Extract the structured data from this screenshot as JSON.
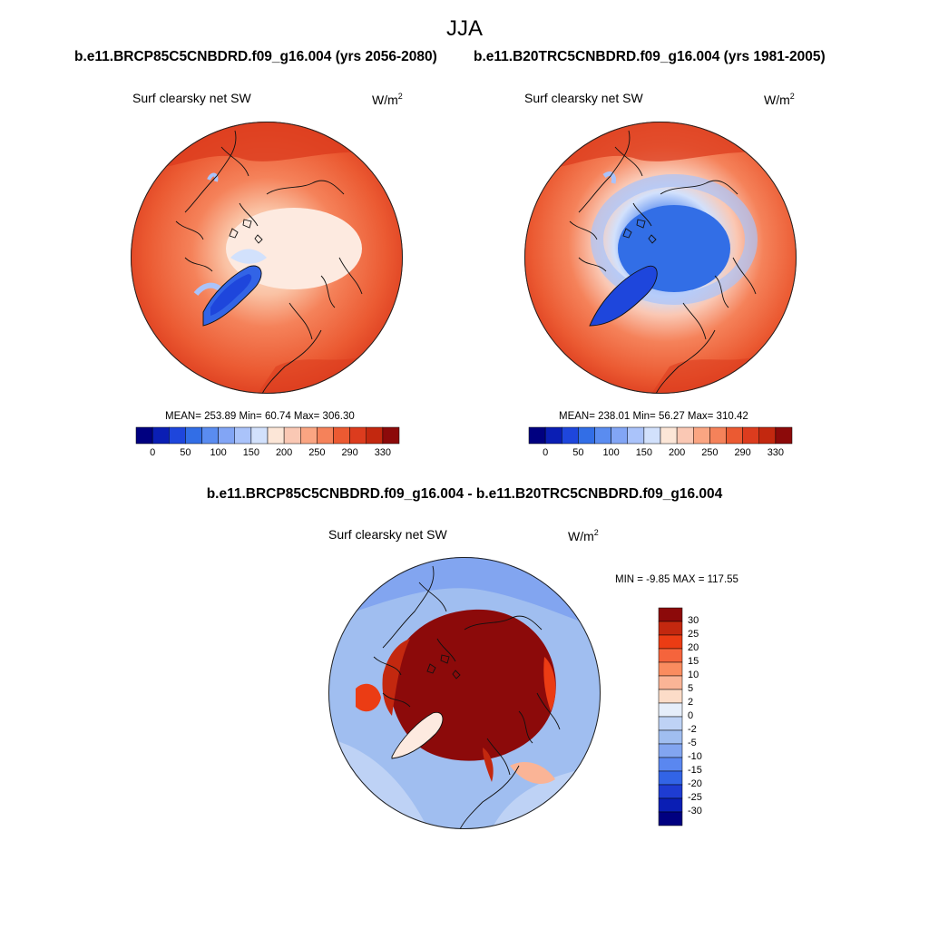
{
  "header": {
    "title": "JJA"
  },
  "panels": [
    {
      "case_title": "b.e11.BRCP85C5CNBDRD.f09_g16.004 (yrs 2056-2080)",
      "variable": "Surf clearsky net SW",
      "unit_base": "W/m",
      "unit_exp": "2",
      "stats": "MEAN= 253.89  Min=  60.74  Max= 306.30"
    },
    {
      "case_title": "b.e11.B20TRC5CNBDRD.f09_g16.004 (yrs 1981-2005)",
      "variable": "Surf clearsky net SW",
      "unit_base": "W/m",
      "unit_exp": "2",
      "stats": "MEAN= 238.01  Min=  56.27  Max= 310.42"
    }
  ],
  "difference": {
    "title": "b.e11.BRCP85C5CNBDRD.f09_g16.004 - b.e11.B20TRC5CNBDRD.f09_g16.004",
    "variable": "Surf clearsky net SW",
    "unit_base": "W/m",
    "unit_exp": "2",
    "stats": "MIN =  -9.85 MAX = 117.55"
  },
  "colorbar_abs": {
    "labels": [
      "0",
      "50",
      "100",
      "150",
      "200",
      "250",
      "290",
      "330"
    ],
    "colors": [
      "#000080",
      "#0a1eb4",
      "#1e46dc",
      "#326ee6",
      "#5a8cf0",
      "#82a5f5",
      "#aac3fa",
      "#d2e1fc",
      "#fce6d7",
      "#fac8b4",
      "#faa582",
      "#f5825a",
      "#eb5a32",
      "#dc3c1e",
      "#c3280f",
      "#8c0a0a"
    ]
  },
  "colorbar_diff": {
    "labels": [
      "30",
      "25",
      "20",
      "15",
      "10",
      "5",
      "2",
      "0",
      "-2",
      "-5",
      "-10",
      "-15",
      "-20",
      "-25",
      "-30"
    ],
    "colors": [
      "#8c0a0a",
      "#c3280f",
      "#eb3c14",
      "#f5643c",
      "#fa8c5f",
      "#fab496",
      "#fcdcc8",
      "#e6eefa",
      "#bed2f5",
      "#a0bef0",
      "#82a5f0",
      "#5a87f0",
      "#3264e6",
      "#1e3cd2",
      "#0a1eb4",
      "#000080"
    ]
  }
}
